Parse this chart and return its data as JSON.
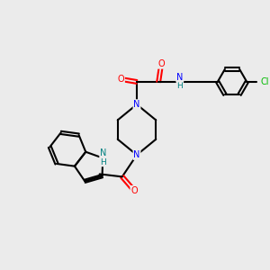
{
  "background_color": "#ebebeb",
  "bond_color": "#000000",
  "atom_colors": {
    "N": "#0000ff",
    "O": "#ff0000",
    "Cl": "#00bb00",
    "H": "#008080",
    "C": "#000000"
  },
  "figsize": [
    3.0,
    3.0
  ],
  "dpi": 100
}
